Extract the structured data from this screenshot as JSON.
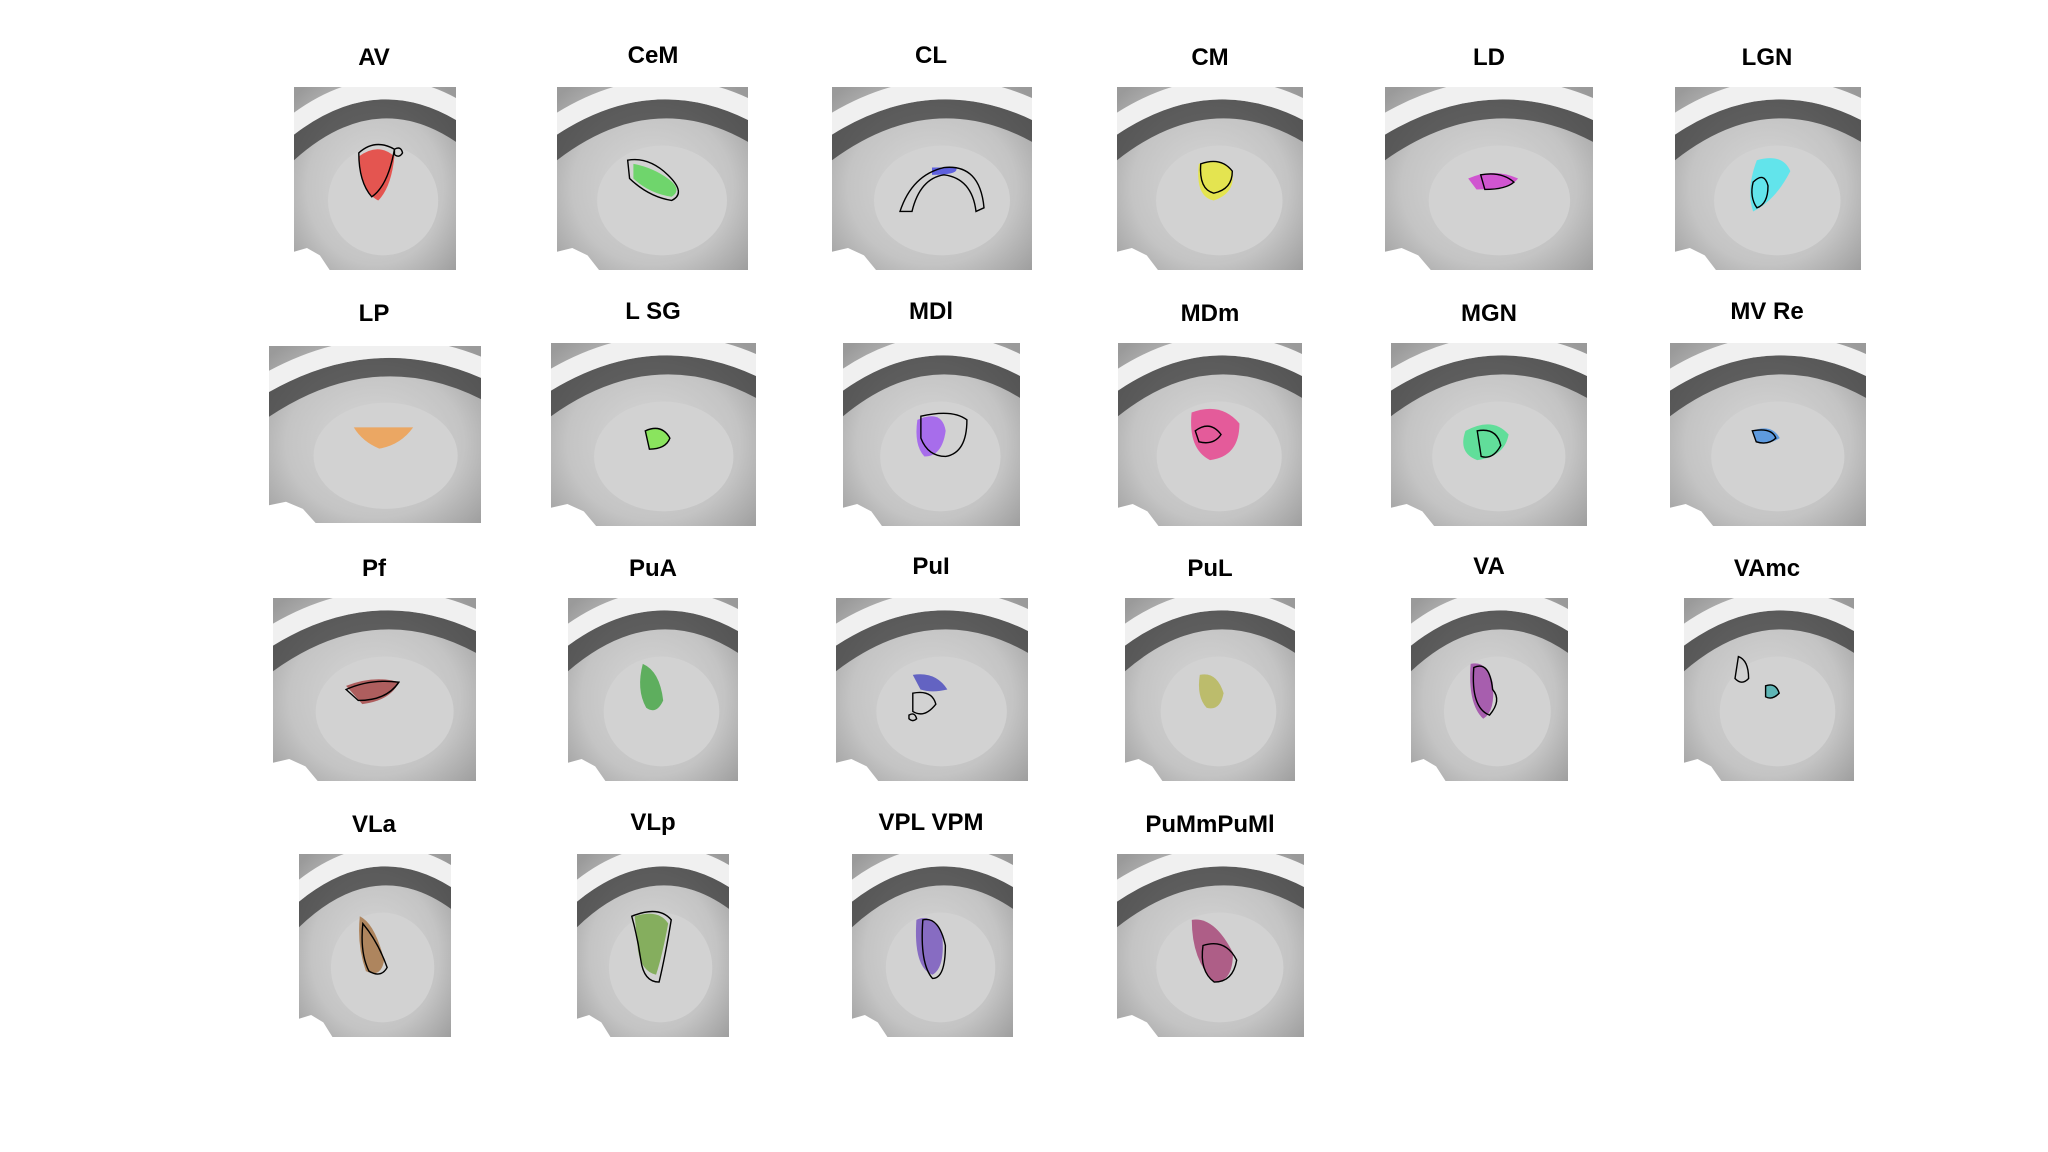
{
  "figure": {
    "panels": [
      {
        "title": "AV",
        "overlay_color": "#e8403a",
        "outline_color": "#000000"
      },
      {
        "title": "CeM",
        "overlay_color": "#5ed65a",
        "outline_color": "#000000"
      },
      {
        "title": "CL",
        "overlay_color": "#4b4ee0",
        "outline_color": "#000000"
      },
      {
        "title": "CM",
        "overlay_color": "#e8e83a",
        "outline_color": "#000000"
      },
      {
        "title": "LD",
        "overlay_color": "#d040d0",
        "outline_color": "#000000"
      },
      {
        "title": "LGN",
        "overlay_color": "#4fe8f0",
        "outline_color": "#000000"
      },
      {
        "title": "LP",
        "overlay_color": "#f0a050",
        "outline_color": "#000000"
      },
      {
        "title": "L SG",
        "overlay_color": "#7ee84a",
        "outline_color": "#000000"
      },
      {
        "title": "MDl",
        "overlay_color": "#a05cf0",
        "outline_color": "#000000"
      },
      {
        "title": "MDm",
        "overlay_color": "#e84690",
        "outline_color": "#000000"
      },
      {
        "title": "MGN",
        "overlay_color": "#4ee090",
        "outline_color": "#000000"
      },
      {
        "title": "MV Re",
        "overlay_color": "#4a90e0",
        "outline_color": "#000000"
      },
      {
        "title": "Pf",
        "overlay_color": "#a84a4a",
        "outline_color": "#000000"
      },
      {
        "title": "PuA",
        "overlay_color": "#4aa84a",
        "outline_color": "#000000"
      },
      {
        "title": "PuI",
        "overlay_color": "#5050c0",
        "outline_color": "#000000"
      },
      {
        "title": "PuL",
        "overlay_color": "#b8b85a",
        "outline_color": "#000000"
      },
      {
        "title": "VA",
        "overlay_color": "#a04aa8",
        "outline_color": "#000000"
      },
      {
        "title": "VAmc",
        "overlay_color": "#4ab0b0",
        "outline_color": "#000000"
      },
      {
        "title": "VLa",
        "overlay_color": "#a8784a",
        "outline_color": "#000000"
      },
      {
        "title": "VLp",
        "overlay_color": "#78a84a",
        "outline_color": "#000000"
      },
      {
        "title": "VPL VPM",
        "overlay_color": "#7a5ac0",
        "outline_color": "#000000"
      },
      {
        "title": "PuMmPuMl",
        "overlay_color": "#a84a7a",
        "outline_color": "#000000"
      }
    ]
  }
}
